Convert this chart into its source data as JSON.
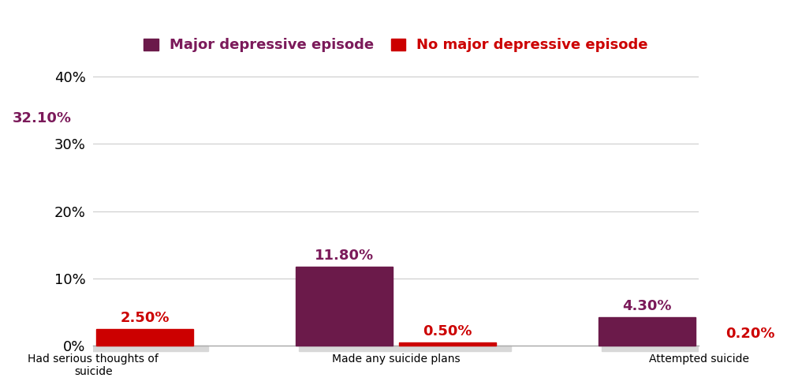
{
  "categories": [
    "Had serious thoughts of\nsuicide",
    "Made any suicide plans",
    "Attempted suicide"
  ],
  "series1_label": "Major depressive episode",
  "series2_label": "No major depressive episode",
  "series1_values": [
    32.1,
    11.8,
    4.3
  ],
  "series2_values": [
    2.5,
    0.5,
    0.2
  ],
  "series1_color": "#6B1A4A",
  "series2_color": "#CC0000",
  "series1_dark_color": "#4A0A30",
  "series2_dark_color": "#990000",
  "series1_label_color": "#7B1A5A",
  "series2_label_color": "#CC0000",
  "value_label_color_series1": "#7B1A5A",
  "value_label_color_series2": "#CC0000",
  "ylim": [
    0,
    42
  ],
  "yticks": [
    0,
    10,
    20,
    30,
    40
  ],
  "ytick_labels": [
    "0%",
    "10%",
    "20%",
    "30%",
    "40%"
  ],
  "bar_width": 0.32,
  "background_color": "#ffffff",
  "grid_color": "#cccccc",
  "legend_fontsize": 13,
  "tick_fontsize": 13,
  "value_fontsize": 13,
  "shadow_color": "#d8d8d8",
  "shadow_depth": 0.8
}
